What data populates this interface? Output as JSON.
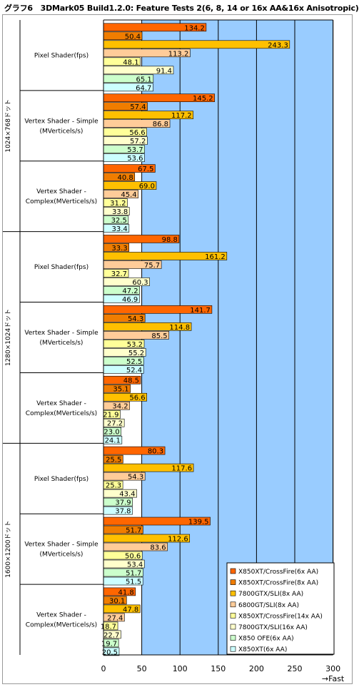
{
  "chart_data": {
    "type": "bar",
    "orientation": "horizontal",
    "title": "グラフ6　3DMark05 Build1.2.0: Feature Tests 2(6, 8, 14 or 16x AA&16x Anisotropic)",
    "xlabel": "→Fast",
    "xlim": [
      0,
      300
    ],
    "xticks": [
      0,
      50,
      100,
      150,
      200,
      250,
      300
    ],
    "grid": true,
    "legend_position": "bottom-right",
    "series": [
      {
        "name": "X850XT/CrossFire(6x AA)",
        "color": "#ff6600"
      },
      {
        "name": "X850XT/CrossFire(8x AA)",
        "color": "#f07d00"
      },
      {
        "name": "7800GTX/SLI(8x AA)",
        "color": "#ffc000"
      },
      {
        "name": "6800GT/SLI(8x AA)",
        "color": "#ffcc99"
      },
      {
        "name": "X850XT/CrossFire(14x AA)",
        "color": "#ffff99"
      },
      {
        "name": "7800GTX/SLI(16x AA)",
        "color": "#ffffcc"
      },
      {
        "name": "X850 OFE(6x AA)",
        "color": "#ccffcc"
      },
      {
        "name": "X850XT(6x AA)",
        "color": "#ccffff"
      }
    ],
    "resolutions": [
      {
        "label": "1024×768ドット",
        "tests": [
          {
            "label": "Pixel Shader(fps)",
            "values": [
              134.2,
              50.4,
              243.3,
              113.2,
              48.1,
              91.4,
              65.1,
              64.7
            ]
          },
          {
            "label": "Vertex Shader - Simple\n(MVerticels/s)",
            "values": [
              145.2,
              57.4,
              117.2,
              86.8,
              56.6,
              57.2,
              53.7,
              53.6
            ]
          },
          {
            "label": "Vertex Shader -\nComplex(MVerticels/s)",
            "values": [
              67.5,
              40.8,
              69.0,
              45.4,
              31.2,
              33.8,
              32.5,
              33.4
            ]
          }
        ]
      },
      {
        "label": "1280×1024ドット",
        "tests": [
          {
            "label": "Pixel Shader(fps)",
            "values": [
              98.8,
              33.3,
              161.2,
              75.7,
              32.7,
              60.3,
              47.2,
              46.9
            ]
          },
          {
            "label": "Vertex Shader - Simple\n(MVerticels/s)",
            "values": [
              141.7,
              54.3,
              114.8,
              85.5,
              53.2,
              55.2,
              52.5,
              52.4
            ]
          },
          {
            "label": "Vertex Shader -\nComplex(MVerticels/s)",
            "values": [
              48.5,
              35.1,
              56.6,
              34.2,
              21.9,
              27.2,
              23.0,
              24.1
            ]
          }
        ]
      },
      {
        "label": "1600×1200ドット",
        "tests": [
          {
            "label": "Pixel Shader(fps)",
            "values": [
              80.3,
              25.5,
              117.6,
              54.3,
              25.3,
              43.4,
              37.9,
              37.8
            ]
          },
          {
            "label": "Vertex Shader - Simple\n(MVerticels/s)",
            "values": [
              139.5,
              51.7,
              112.6,
              83.6,
              50.6,
              53.4,
              51.7,
              51.5
            ]
          },
          {
            "label": "Vertex Shader -\nComplex(MVerticels/s)",
            "values": [
              41.8,
              30.1,
              47.8,
              27.4,
              18.7,
              22.7,
              19.7,
              20.5
            ]
          }
        ]
      }
    ],
    "plot_background": "#99ccff"
  }
}
